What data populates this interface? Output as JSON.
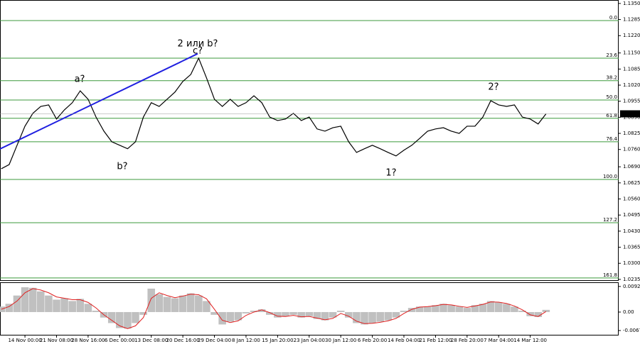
{
  "chart_data": [
    {
      "type": "line",
      "color": "#000000",
      "x": [
        -0.75,
        -0.5,
        -0.25,
        0,
        0.25,
        0.5,
        0.75,
        1,
        1.25,
        1.5,
        1.75,
        2,
        2.25,
        2.5,
        2.75,
        3,
        3.25,
        3.5,
        3.75,
        4,
        4.25,
        4.5,
        4.75,
        5,
        5.25,
        5.5,
        5.75,
        6,
        6.25,
        6.5,
        6.75,
        7,
        7.25,
        7.5,
        7.75,
        8,
        8.25,
        8.5,
        8.75,
        9,
        9.25,
        9.5,
        9.75,
        10,
        10.25,
        10.5,
        10.75,
        11,
        11.25,
        11.5,
        11.75,
        12,
        12.25,
        12.5,
        12.75,
        13,
        13.25,
        13.5,
        13.75,
        14,
        14.25,
        14.5,
        14.75,
        15,
        15.25,
        15.5,
        15.75,
        16,
        16.25,
        16.5
      ],
      "values": [
        1.0682,
        1.0699,
        1.0777,
        1.0854,
        1.0906,
        1.0934,
        1.094,
        1.0883,
        1.092,
        1.0949,
        1.0997,
        1.0963,
        1.0891,
        1.0834,
        1.0791,
        1.0777,
        1.0763,
        1.0791,
        1.0891,
        1.0949,
        1.0934,
        1.0963,
        1.0992,
        1.1035,
        1.1063,
        1.1129,
        1.1049,
        1.0963,
        1.0934,
        1.0963,
        1.0934,
        1.0949,
        1.0977,
        1.0949,
        1.0891,
        1.0877,
        1.0883,
        1.0906,
        1.0877,
        1.0891,
        1.0843,
        1.0834,
        1.0848,
        1.0854,
        1.0791,
        1.0748,
        1.0763,
        1.0777,
        1.0763,
        1.0748,
        1.0734,
        1.0757,
        1.0777,
        1.0805,
        1.0834,
        1.0843,
        1.0848,
        1.0834,
        1.0825,
        1.0854,
        1.0854,
        1.0891,
        1.0957,
        1.094,
        1.0934,
        1.094,
        1.0891,
        1.0883,
        1.0863,
        1.0904
      ],
      "xlim": [
        -0.79,
        18.8
      ],
      "ylim": [
        1.0229,
        1.1364
      ],
      "xticks": [
        {
          "value": 0,
          "label": "14 Nov 00:00"
        },
        {
          "value": 1,
          "label": "21 Nov 08:00"
        },
        {
          "value": 2,
          "label": "28 Nov 16:00"
        },
        {
          "value": 3,
          "label": "6 Dec 00:00"
        },
        {
          "value": 4,
          "label": "13 Dec 08:00"
        },
        {
          "value": 5,
          "label": "20 Dec 16:00"
        },
        {
          "value": 6,
          "label": "29 Dec 04:00"
        },
        {
          "value": 7,
          "label": "8 Jan 12:00"
        },
        {
          "value": 8,
          "label": "15 Jan 20:00"
        },
        {
          "value": 9,
          "label": "23 Jan 04:00"
        },
        {
          "value": 10,
          "label": "30 Jan 12:00"
        },
        {
          "value": 11,
          "label": "6 Feb 20:00"
        },
        {
          "value": 12,
          "label": "14 Feb 04:00"
        },
        {
          "value": 13,
          "label": "21 Feb 12:00"
        },
        {
          "value": 14,
          "label": "28 Feb 20:00"
        },
        {
          "value": 15,
          "label": "7 Mar 04:00"
        },
        {
          "value": 16,
          "label": "14 Mar 12:00"
        }
      ],
      "yticks": [
        {
          "value": 1.135,
          "label": "1.1350"
        },
        {
          "value": 1.1285,
          "label": "1.1285"
        },
        {
          "value": 1.122,
          "label": "1.1220"
        },
        {
          "value": 1.115,
          "label": "1.1150"
        },
        {
          "value": 1.1085,
          "label": "1.1085"
        },
        {
          "value": 1.102,
          "label": "1.1020"
        },
        {
          "value": 1.0955,
          "label": "1.0955"
        },
        {
          "value": 1.089,
          "label": "1.0890"
        },
        {
          "value": 1.0825,
          "label": "1.0825"
        },
        {
          "value": 1.076,
          "label": "1.0760"
        },
        {
          "value": 1.069,
          "label": "1.0690"
        },
        {
          "value": 1.0625,
          "label": "1.0625"
        },
        {
          "value": 1.056,
          "label": "1.0560"
        },
        {
          "value": 1.0495,
          "label": "1.0495"
        },
        {
          "value": 1.043,
          "label": "1.0430"
        },
        {
          "value": 1.0365,
          "label": "1.0365"
        },
        {
          "value": 1.03,
          "label": "1.0300"
        },
        {
          "value": 1.0235,
          "label": "1.0235"
        }
      ],
      "last_price": 1.0904,
      "levels": {
        "color": "#3c9a3c",
        "items": [
          {
            "value": 1.1281,
            "label": "0.0"
          },
          {
            "value": 1.1129,
            "label": "23.6"
          },
          {
            "value": 1.1038,
            "label": "38.2"
          },
          {
            "value": 1.096,
            "label": "50.0"
          },
          {
            "value": 1.0886,
            "label": "61.8"
          },
          {
            "value": 1.0791,
            "label": "76.4"
          },
          {
            "value": 1.0639,
            "label": "100.0"
          },
          {
            "value": 1.0464,
            "label": "127.2"
          },
          {
            "value": 1.0241,
            "label": "161.8"
          }
        ]
      },
      "trendline": {
        "color": "#1f1fe0",
        "x": [
          -0.79,
          5.47
        ],
        "values": [
          1.0762,
          1.1147
        ]
      },
      "annotations": [
        {
          "text": "2 или b?",
          "color": "#1f1fe0"
        },
        {
          "text": "c?",
          "color": "#e02020"
        },
        {
          "text": "a?",
          "color": "#e02020"
        },
        {
          "text": "b?",
          "color": "#e02020"
        },
        {
          "text": "2?",
          "color": "#e02020"
        },
        {
          "text": "1?",
          "color": "#e02020"
        }
      ]
    },
    {
      "type": "bar",
      "color": "#c0c0c0",
      "signal_color": "#e02020",
      "x": [
        -0.75,
        -0.5,
        -0.25,
        0,
        0.25,
        0.5,
        0.75,
        1,
        1.25,
        1.5,
        1.75,
        2,
        2.25,
        2.5,
        2.75,
        3,
        3.25,
        3.5,
        3.75,
        4,
        4.25,
        4.5,
        4.75,
        5,
        5.25,
        5.5,
        5.75,
        6,
        6.25,
        6.5,
        6.75,
        7,
        7.25,
        7.5,
        7.75,
        8,
        8.25,
        8.5,
        8.75,
        9,
        9.25,
        9.5,
        9.75,
        10,
        10.25,
        10.5,
        10.75,
        11,
        11.25,
        11.5,
        11.75,
        12,
        12.25,
        12.5,
        12.75,
        13,
        13.25,
        13.5,
        13.75,
        14,
        14.25,
        14.5,
        14.75,
        15,
        15.25,
        15.5,
        15.75,
        16,
        16.25,
        16.5
      ],
      "values": [
        0.002,
        0.003,
        0.006,
        0.009,
        0.0088,
        0.0075,
        0.006,
        0.0045,
        0.005,
        0.004,
        0.0048,
        0.003,
        0.0005,
        -0.002,
        -0.004,
        -0.0058,
        -0.006,
        -0.004,
        -0.001,
        0.0085,
        0.0065,
        0.0055,
        0.005,
        0.006,
        0.0068,
        0.006,
        0.004,
        -0.001,
        -0.0045,
        -0.0035,
        -0.003,
        -0.0005,
        0.0005,
        0.001,
        -0.001,
        -0.002,
        -0.0015,
        -0.001,
        -0.002,
        -0.0015,
        -0.0025,
        -0.003,
        -0.002,
        0.0005,
        -0.002,
        -0.004,
        -0.0045,
        -0.004,
        -0.0035,
        -0.003,
        -0.002,
        0.0005,
        0.0015,
        0.002,
        0.002,
        0.0025,
        0.003,
        0.0025,
        0.002,
        0.0015,
        0.0025,
        0.003,
        0.004,
        0.0035,
        0.003,
        0.002,
        0.0005,
        -0.0015,
        -0.0018,
        0.0008
      ],
      "signal": [
        0.001,
        0.002,
        0.004,
        0.007,
        0.0085,
        0.008,
        0.007,
        0.0055,
        0.005,
        0.0045,
        0.0045,
        0.0035,
        0.0015,
        -0.001,
        -0.003,
        -0.005,
        -0.006,
        -0.005,
        -0.002,
        0.005,
        0.007,
        0.006,
        0.0052,
        0.0058,
        0.0065,
        0.0063,
        0.0048,
        0.001,
        -0.003,
        -0.0038,
        -0.0032,
        -0.0012,
        0,
        0.0008,
        -0.0002,
        -0.0015,
        -0.0016,
        -0.0012,
        -0.0017,
        -0.0016,
        -0.0022,
        -0.0028,
        -0.0023,
        -0.0005,
        -0.0015,
        -0.0033,
        -0.0042,
        -0.0041,
        -0.0037,
        -0.0032,
        -0.0023,
        -0.0005,
        0.001,
        0.0018,
        0.002,
        0.0023,
        0.0028,
        0.0026,
        0.0021,
        0.0017,
        0.0022,
        0.0028,
        0.0037,
        0.0036,
        0.0031,
        0.0022,
        0.0008,
        -0.001,
        -0.0016,
        0.0002
      ],
      "xlim": [
        -0.79,
        18.8
      ],
      "ylim": [
        -0.0085,
        0.0108
      ],
      "yticks": [
        {
          "value": 0.00929,
          "label": "0.00929"
        },
        {
          "value": 0,
          "label": "0.00"
        },
        {
          "value": -0.0067,
          "label": "-0.0067"
        }
      ]
    }
  ]
}
